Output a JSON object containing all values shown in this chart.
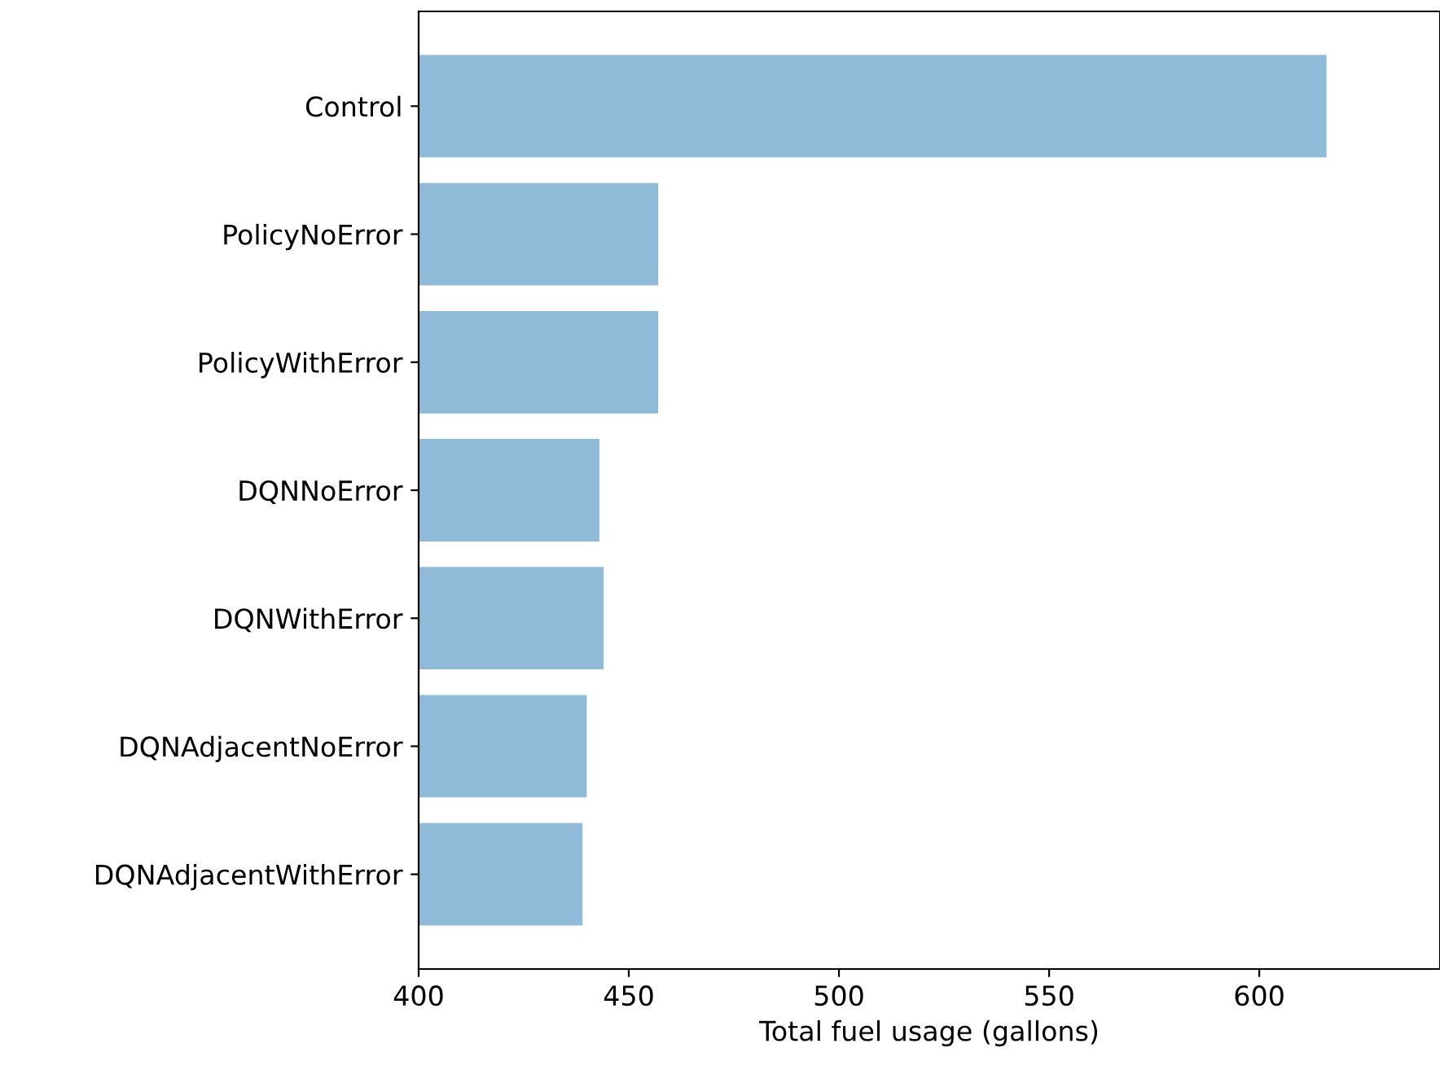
{
  "chart_data": {
    "type": "bar",
    "orientation": "horizontal",
    "xlabel": "Total fuel usage (gallons)",
    "categories": [
      "Control",
      "PolicyNoError",
      "PolicyWithError",
      "DQNNoError",
      "DQNWithError",
      "DQNAdjacentNoError",
      "DQNAdjacentWithError"
    ],
    "values": [
      616,
      457,
      457,
      443,
      444,
      440,
      439
    ],
    "color": "#8fbbd9",
    "xlim": [
      400,
      643
    ],
    "xticks": [
      400,
      450,
      500,
      550,
      600
    ],
    "grid": false,
    "legend": false
  }
}
